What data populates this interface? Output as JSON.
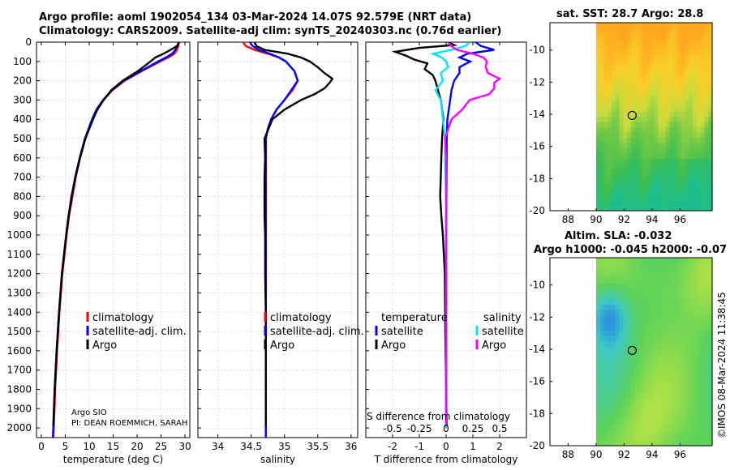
{
  "titles": {
    "line1": "Argo profile: aoml 1902054_134 03-Mar-2024 14.07S 92.579E (NRT data)",
    "line2": "Climatology: CARS2009. Satellite-adj clim: synTS_20240303.nc (0.76d earlier)",
    "sst_title": "sat. SST: 28.7 Argo: 28.8",
    "sla_title1": "Altim. SLA: -0.032",
    "sla_title2": "Argo h1000: -0.045 h2000: -0.07"
  },
  "footer": {
    "institution": "Argo SIO",
    "pi": "PI: DEAN ROEMMICH, SARAH",
    "stamp": "©IMOS 08-Mar-2024 11:38:45"
  },
  "colors": {
    "climatology": "#ff0000",
    "satellite": "#0000ff",
    "argo": "#000000",
    "sat_t": "#0000ff",
    "sat_s": "#00e5ff",
    "argo_t": "#000000",
    "argo_s": "#ff00ff"
  },
  "chart_data": [
    {
      "type": "line",
      "name": "temperature",
      "xlabel": "temperature (deg C)",
      "xlim": [
        -1,
        31
      ],
      "xticks": [
        0,
        5,
        10,
        15,
        20,
        25,
        30
      ],
      "xtick_labels": [
        "0",
        "5",
        "10",
        "15",
        "20",
        "25",
        "30"
      ],
      "ylim": [
        0,
        2050
      ],
      "yticks": [
        0,
        100,
        200,
        300,
        400,
        500,
        600,
        700,
        800,
        900,
        1000,
        1100,
        1200,
        1300,
        1400,
        1500,
        1600,
        1700,
        1800,
        1900,
        2000
      ],
      "yaxis_reversed": true,
      "legend": [
        "climatology",
        "satellite-adj. clim.",
        "Argo"
      ],
      "series": [
        {
          "name": "climatology",
          "color": "#ff0000",
          "depth": [
            0,
            20,
            40,
            60,
            80,
            100,
            150,
            200,
            250,
            300,
            350,
            400,
            500,
            600,
            700,
            800,
            900,
            1000,
            1200,
            1400,
            1600,
            1800,
            2000,
            2050
          ],
          "values": [
            28.7,
            28.6,
            28.3,
            27.8,
            26.5,
            24.8,
            21.0,
            17.4,
            14.8,
            13.0,
            11.6,
            10.7,
            9.2,
            8.1,
            7.2,
            6.5,
            5.8,
            5.3,
            4.4,
            3.8,
            3.3,
            2.9,
            2.6,
            2.5
          ]
        },
        {
          "name": "satellite-adj. clim.",
          "color": "#0000ff",
          "depth": [
            0,
            20,
            40,
            60,
            80,
            100,
            150,
            200,
            250,
            300,
            350,
            400,
            500,
            600,
            700,
            800,
            900,
            1000,
            1200,
            1400,
            1600,
            1800,
            2000,
            2050
          ],
          "values": [
            28.7,
            28.4,
            28.0,
            27.3,
            26.0,
            24.4,
            20.8,
            17.2,
            14.7,
            12.9,
            11.5,
            10.6,
            9.1,
            8.0,
            7.1,
            6.4,
            5.7,
            5.2,
            4.3,
            3.7,
            3.2,
            2.8,
            2.5,
            2.4
          ]
        },
        {
          "name": "Argo",
          "color": "#000000",
          "depth": [
            2,
            20,
            40,
            60,
            80,
            100,
            150,
            200,
            250,
            300,
            350,
            400,
            500,
            600,
            700,
            800,
            900,
            1000,
            1200,
            1400,
            1600,
            1800,
            1990
          ],
          "values": [
            28.8,
            28.3,
            27.0,
            25.5,
            23.8,
            22.8,
            20.2,
            17.0,
            14.6,
            13.0,
            11.7,
            10.8,
            9.2,
            8.1,
            7.1,
            6.3,
            5.7,
            5.2,
            4.3,
            3.7,
            3.2,
            2.8,
            2.5
          ]
        }
      ]
    },
    {
      "type": "line",
      "name": "salinity",
      "xlabel": "salinity",
      "xlim": [
        33.7,
        36.1
      ],
      "xticks": [
        34,
        34.5,
        35,
        35.5,
        36
      ],
      "xtick_labels": [
        "34",
        "34.5",
        "35",
        "35.5",
        "36"
      ],
      "ylim": [
        0,
        2050
      ],
      "yaxis_reversed": true,
      "legend": [
        "climatology",
        "satellite-adj. clim.",
        "Argo"
      ],
      "series": [
        {
          "name": "climatology",
          "color": "#ff0000",
          "depth": [
            0,
            20,
            40,
            60,
            80,
            100,
            150,
            200,
            250,
            300,
            350,
            400,
            450,
            500,
            600,
            800,
            1000,
            1200,
            1500,
            1800,
            2000,
            2050
          ],
          "values": [
            34.38,
            34.42,
            34.55,
            34.75,
            34.92,
            35.02,
            35.15,
            35.2,
            35.12,
            35.0,
            34.88,
            34.8,
            34.75,
            34.72,
            34.72,
            34.72,
            34.72,
            34.72,
            34.72,
            34.72,
            34.72,
            34.72
          ]
        },
        {
          "name": "satellite-adj. clim.",
          "color": "#0000ff",
          "depth": [
            0,
            20,
            40,
            60,
            80,
            100,
            150,
            200,
            250,
            300,
            350,
            400,
            450,
            500,
            600,
            800,
            1000,
            1200,
            1500,
            1800,
            2000,
            2050
          ],
          "values": [
            34.48,
            34.52,
            34.62,
            34.78,
            34.92,
            35.02,
            35.15,
            35.2,
            35.1,
            35.0,
            34.88,
            34.8,
            34.75,
            34.72,
            34.72,
            34.72,
            34.72,
            34.72,
            34.72,
            34.72,
            34.72,
            34.72
          ]
        },
        {
          "name": "Argo",
          "color": "#000000",
          "depth": [
            2,
            20,
            40,
            60,
            80,
            100,
            130,
            160,
            190,
            210,
            240,
            270,
            300,
            350,
            400,
            450,
            500,
            600,
            700,
            800,
            900,
            1000,
            1200,
            1400,
            1600,
            1800,
            1990
          ],
          "values": [
            34.55,
            34.58,
            34.7,
            35.05,
            35.25,
            35.38,
            35.5,
            35.6,
            35.72,
            35.68,
            35.6,
            35.45,
            35.25,
            35.0,
            34.82,
            34.76,
            34.7,
            34.71,
            34.7,
            34.7,
            34.7,
            34.71,
            34.71,
            34.72,
            34.72,
            34.72,
            34.72
          ]
        }
      ]
    },
    {
      "type": "line",
      "name": "difference",
      "xlabel": "T difference from climatology",
      "top_xlabel": "S difference from climatology",
      "xlim": [
        -3,
        3
      ],
      "xticks": [
        -2,
        -1,
        0,
        1,
        2
      ],
      "xtick_labels": [
        "-2",
        "-1",
        "0",
        "1",
        "2"
      ],
      "top_ticks": [
        -0.5,
        -0.25,
        0,
        0.25,
        0.5
      ],
      "top_tick_labels": [
        "-0.5",
        "-0.25",
        "0",
        "0.25",
        "0.5"
      ],
      "ylim": [
        0,
        2050
      ],
      "yaxis_reversed": true,
      "legend_headers": [
        "temperature",
        "salinity"
      ],
      "legend": [
        "satellite",
        "Argo",
        "satellite",
        "Argo"
      ],
      "series": [
        {
          "name": "T satellite",
          "color": "#0000ff",
          "depth": [
            0,
            20,
            40,
            60,
            80,
            100,
            130,
            160,
            200,
            250,
            300,
            350,
            400,
            500,
            600,
            800,
            1000,
            1500,
            2000
          ],
          "values": [
            1.1,
            1.3,
            1.8,
            0.8,
            0.5,
            0.9,
            0.5,
            0.5,
            0.3,
            0.2,
            0.15,
            0.1,
            0.05,
            0.02,
            0.02,
            0.01,
            0,
            0,
            0
          ]
        },
        {
          "name": "T Argo",
          "color": "#000000",
          "depth": [
            2,
            15,
            30,
            50,
            70,
            90,
            110,
            140,
            170,
            200,
            250,
            300,
            350,
            400,
            500,
            600,
            700,
            800,
            900,
            1000,
            1200,
            1500,
            1800,
            1990
          ],
          "values": [
            0.1,
            0.3,
            -1.0,
            -1.9,
            -1.5,
            -1.2,
            -0.7,
            -0.8,
            -0.5,
            -0.4,
            -0.3,
            -0.2,
            -0.15,
            -0.1,
            -0.15,
            -0.18,
            -0.2,
            -0.22,
            -0.18,
            -0.12,
            -0.05,
            -0.03,
            0,
            0.02
          ]
        },
        {
          "name": "S satellite",
          "color": "#00e5ff",
          "depth": [
            0,
            20,
            40,
            60,
            80,
            100,
            130,
            160,
            200,
            250,
            300,
            350,
            400,
            450,
            500,
            600,
            800,
            1000,
            1500,
            2000
          ],
          "values": [
            0.22,
            0.18,
            0.05,
            -0.12,
            -0.04,
            0.0,
            0.02,
            -0.05,
            -0.03,
            -0.1,
            -0.05,
            -0.04,
            -0.03,
            -0.02,
            -0.01,
            -0.01,
            0,
            0,
            0,
            0
          ]
        },
        {
          "name": "S Argo",
          "color": "#ff00ff",
          "depth": [
            2,
            20,
            40,
            60,
            80,
            100,
            130,
            160,
            190,
            210,
            240,
            270,
            300,
            350,
            400,
            450,
            500,
            600,
            800,
            1000,
            1200,
            1500,
            1800,
            1990
          ],
          "values": [
            0.02,
            0.05,
            0.1,
            0.25,
            0.35,
            0.38,
            0.37,
            0.39,
            0.5,
            0.45,
            0.45,
            0.4,
            0.22,
            0.15,
            0.05,
            0.02,
            -0.01,
            0.0,
            0.0,
            0.0,
            0.0,
            0.0,
            0.0,
            0.0
          ]
        }
      ]
    },
    {
      "type": "heatmap",
      "name": "sst_map",
      "title": "sat. SST: 28.7 Argo: 28.8",
      "xlim": [
        86.7,
        98.3
      ],
      "ylim": [
        -20,
        -8.3
      ],
      "xticks": [
        88,
        90,
        92,
        94,
        96
      ],
      "xtick_labels": [
        "88",
        "90",
        "92",
        "94",
        "96"
      ],
      "yticks": [
        -10,
        -12,
        -14,
        -16,
        -18,
        -20
      ],
      "ytick_labels": [
        "-10",
        "-12",
        "-14",
        "-16",
        "-18",
        "-20"
      ],
      "data_lon_start": 90,
      "argo_position": [
        92.579,
        -14.07
      ]
    },
    {
      "type": "heatmap",
      "name": "sla_map",
      "xlim": [
        86.7,
        98.3
      ],
      "ylim": [
        -20,
        -8.3
      ],
      "xticks": [
        88,
        90,
        92,
        94,
        96
      ],
      "xtick_labels": [
        "88",
        "90",
        "92",
        "94",
        "96"
      ],
      "yticks": [
        -10,
        -12,
        -14,
        -16,
        -18,
        -20
      ],
      "ytick_labels": [
        "-10",
        "-12",
        "-14",
        "-16",
        "-18",
        "-20"
      ],
      "data_lon_start": 90,
      "argo_position": [
        92.579,
        -14.07
      ]
    }
  ]
}
